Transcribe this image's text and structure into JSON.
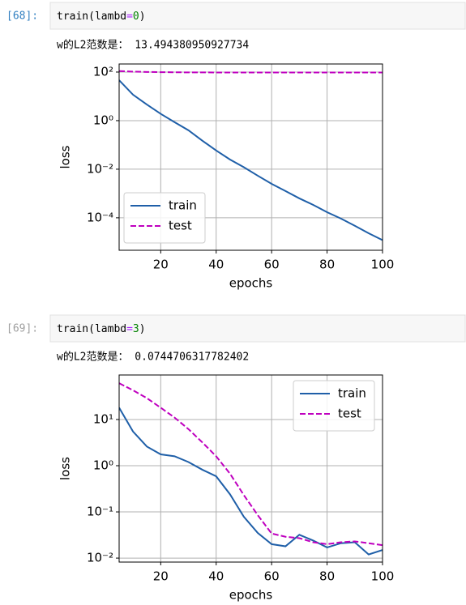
{
  "cells": [
    {
      "prompt": "[68]:",
      "code": [
        "train(lambd",
        "=",
        "0",
        ")"
      ],
      "output": "w的L2范数是： 13.494380950927734"
    },
    {
      "prompt": "[69]:",
      "code": [
        "train(lambd",
        "=",
        "3",
        ")"
      ],
      "output": "w的L2范数是： 0.0744706317782402"
    }
  ],
  "chart_data": [
    {
      "type": "line",
      "xlabel": "epochs",
      "ylabel": "loss",
      "yscale": "log",
      "grid": true,
      "legend": "lower left",
      "x": [
        5,
        10,
        15,
        20,
        25,
        30,
        35,
        40,
        45,
        50,
        55,
        60,
        65,
        70,
        75,
        80,
        85,
        90,
        95,
        100
      ],
      "xlim": [
        5,
        100
      ],
      "xticks": [
        20,
        40,
        60,
        80,
        100
      ],
      "ylim": [
        4.6e-06,
        215
      ],
      "yticks": [
        {
          "value": 100,
          "label": "10²"
        },
        {
          "value": 1,
          "label": "10⁰"
        },
        {
          "value": 0.01,
          "label": "10⁻²"
        },
        {
          "value": 0.0001,
          "label": "10⁻⁴"
        }
      ],
      "series": [
        {
          "name": "train",
          "color": "#1f5fa8",
          "dash": false,
          "values": [
            46,
            11.7,
            4.6,
            1.9,
            0.86,
            0.4,
            0.15,
            0.059,
            0.025,
            0.012,
            0.0054,
            0.0025,
            0.00126,
            0.00063,
            0.00034,
            0.00017,
            9.3e-05,
            4.7e-05,
            2.3e-05,
            1.2e-05
          ]
        },
        {
          "name": "test",
          "color": "#bf00bf",
          "dash": true,
          "values": [
            110,
            104,
            101,
            99,
            98,
            97,
            97,
            96,
            96,
            96,
            96,
            96,
            96,
            96,
            96,
            96,
            96,
            96,
            96,
            96
          ]
        }
      ]
    },
    {
      "type": "line",
      "xlabel": "epochs",
      "ylabel": "loss",
      "yscale": "log",
      "grid": true,
      "legend": "upper right",
      "x": [
        5,
        10,
        15,
        20,
        25,
        30,
        35,
        40,
        45,
        50,
        55,
        60,
        65,
        70,
        75,
        80,
        85,
        90,
        95,
        100
      ],
      "xlim": [
        5,
        100
      ],
      "xticks": [
        20,
        40,
        60,
        80,
        100
      ],
      "ylim": [
        0.0082,
        92
      ],
      "yticks": [
        {
          "value": 10,
          "label": "10¹"
        },
        {
          "value": 1,
          "label": "10⁰"
        },
        {
          "value": 0.1,
          "label": "10⁻¹"
        },
        {
          "value": 0.01,
          "label": "10⁻²"
        }
      ],
      "series": [
        {
          "name": "train",
          "color": "#1f5fa8",
          "dash": false,
          "values": [
            18,
            5.5,
            2.6,
            1.76,
            1.6,
            1.2,
            0.82,
            0.59,
            0.24,
            0.078,
            0.035,
            0.02,
            0.018,
            0.032,
            0.024,
            0.017,
            0.021,
            0.022,
            0.012,
            0.015
          ]
        },
        {
          "name": "test",
          "color": "#bf00bf",
          "dash": true,
          "values": [
            61,
            43,
            29,
            18,
            11,
            6.2,
            3.2,
            1.6,
            0.67,
            0.23,
            0.085,
            0.034,
            0.029,
            0.027,
            0.022,
            0.02,
            0.022,
            0.023,
            0.021,
            0.019
          ]
        }
      ]
    }
  ]
}
